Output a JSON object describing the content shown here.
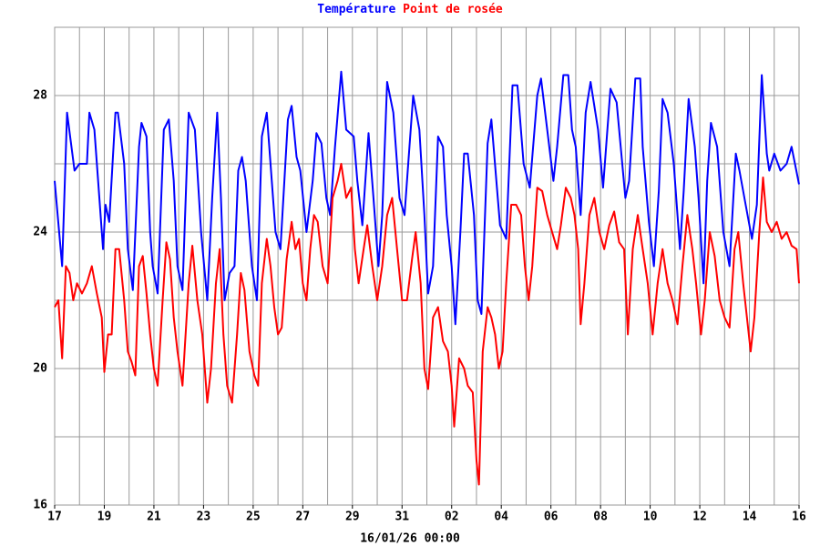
{
  "chart_data": {
    "type": "line",
    "xlabel": "16/01/26 00:00",
    "xlim": [
      0,
      30
    ],
    "ylim": [
      16,
      30
    ],
    "yticks": [
      16,
      20,
      24,
      28
    ],
    "minor_yticks": [
      18,
      22,
      26,
      30
    ],
    "xticks": [
      {
        "value": 0,
        "label": "17"
      },
      {
        "value": 2,
        "label": "19"
      },
      {
        "value": 4,
        "label": "21"
      },
      {
        "value": 6,
        "label": "23"
      },
      {
        "value": 8,
        "label": "25"
      },
      {
        "value": 10,
        "label": "27"
      },
      {
        "value": 12,
        "label": "29"
      },
      {
        "value": 14,
        "label": "31"
      },
      {
        "value": 16,
        "label": "02"
      },
      {
        "value": 18,
        "label": "04"
      },
      {
        "value": 20,
        "label": "06"
      },
      {
        "value": 22,
        "label": "08"
      },
      {
        "value": 24,
        "label": "10"
      },
      {
        "value": 26,
        "label": "12"
      },
      {
        "value": 28,
        "label": "14"
      },
      {
        "value": 30,
        "label": "16"
      }
    ],
    "minor_xticks": [
      1,
      3,
      5,
      7,
      9,
      11,
      13,
      15,
      17,
      19,
      21,
      23,
      25,
      27,
      29
    ],
    "grid": true,
    "series": [
      {
        "name": "Température",
        "color": "#0000ff",
        "x": [
          0,
          0.3,
          0.5,
          0.8,
          1.0,
          1.3,
          1.4,
          1.6,
          1.75,
          1.95,
          2.05,
          2.2,
          2.45,
          2.55,
          2.8,
          2.95,
          3.15,
          3.4,
          3.5,
          3.7,
          3.85,
          3.95,
          4.15,
          4.4,
          4.6,
          4.8,
          4.95,
          5.15,
          5.4,
          5.65,
          5.9,
          6.15,
          6.35,
          6.55,
          6.7,
          6.85,
          7.05,
          7.25,
          7.4,
          7.55,
          7.7,
          7.95,
          8.15,
          8.35,
          8.55,
          8.75,
          8.9,
          9.1,
          9.4,
          9.55,
          9.75,
          9.9,
          10.15,
          10.4,
          10.55,
          10.75,
          10.95,
          11.1,
          11.3,
          11.55,
          11.75,
          12.05,
          12.2,
          12.4,
          12.65,
          12.85,
          13.05,
          13.2,
          13.4,
          13.65,
          13.9,
          14.1,
          14.3,
          14.45,
          14.7,
          14.9,
          15.05,
          15.25,
          15.45,
          15.65,
          15.8,
          16.0,
          16.15,
          16.35,
          16.5,
          16.65,
          16.9,
          17.05,
          17.2,
          17.45,
          17.6,
          17.8,
          17.95,
          18.2,
          18.45,
          18.65,
          18.9,
          19.15,
          19.45,
          19.6,
          19.85,
          20.1,
          20.25,
          20.5,
          20.7,
          20.85,
          21.0,
          21.2,
          21.4,
          21.6,
          21.9,
          22.1,
          22.4,
          22.65,
          23.0,
          23.15,
          23.4,
          23.6,
          23.7,
          23.95,
          24.15,
          24.35,
          24.5,
          24.7,
          24.95,
          25.2,
          25.35,
          25.55,
          25.8,
          25.95,
          26.15,
          26.3,
          26.45,
          26.7,
          26.95,
          27.2,
          27.45,
          27.6,
          27.85,
          28.1,
          28.3,
          28.5,
          28.7,
          28.8,
          29.0,
          29.25,
          29.5,
          29.7,
          30.0
        ],
        "values": [
          25.5,
          23,
          27.5,
          25.8,
          26,
          26,
          27.5,
          27,
          25.5,
          23.5,
          24.8,
          24.3,
          27.5,
          27.5,
          26,
          23.5,
          22.3,
          26.5,
          27.2,
          26.8,
          24,
          23,
          22.2,
          27,
          27.3,
          25.5,
          23,
          22.3,
          27.5,
          27,
          24,
          22,
          25,
          27.5,
          25,
          22,
          22.8,
          23,
          25.8,
          26.2,
          25.5,
          23,
          22,
          26.8,
          27.5,
          25.5,
          24,
          23.5,
          27.3,
          27.7,
          26.2,
          25.8,
          24,
          25.5,
          26.9,
          26.6,
          25,
          24.5,
          26.5,
          28.7,
          27,
          26.8,
          25.5,
          24.2,
          26.9,
          25,
          23,
          24.5,
          28.4,
          27.5,
          25,
          24.5,
          26.5,
          28,
          27,
          24.5,
          22.2,
          23,
          26.8,
          26.5,
          24.5,
          23,
          21.3,
          24,
          26.3,
          26.3,
          24.5,
          22,
          21.6,
          26.6,
          27.3,
          25.5,
          24.2,
          23.8,
          28.3,
          28.3,
          26,
          25.3,
          28,
          28.5,
          27,
          25.5,
          26.5,
          28.6,
          28.6,
          27,
          26.5,
          24.5,
          27.5,
          28.4,
          27,
          25.3,
          28.2,
          27.8,
          25,
          25.5,
          28.5,
          28.5,
          26.5,
          24.3,
          23,
          25.2,
          27.9,
          27.5,
          26,
          23.5,
          25.2,
          27.9,
          26.5,
          25,
          22.5,
          25.5,
          27.2,
          26.5,
          24,
          23,
          26.3,
          25.8,
          24.8,
          23.8,
          24.8,
          28.6,
          26.3,
          25.8,
          26.3,
          25.8,
          26,
          26.5,
          25.4
        ]
      },
      {
        "name": "Point de rosée",
        "color": "#ff0000",
        "x": [
          0,
          0.15,
          0.3,
          0.45,
          0.6,
          0.75,
          0.9,
          1.1,
          1.3,
          1.5,
          1.7,
          1.9,
          2.0,
          2.15,
          2.3,
          2.45,
          2.6,
          2.8,
          2.95,
          3.1,
          3.25,
          3.4,
          3.55,
          3.7,
          3.85,
          4.0,
          4.15,
          4.35,
          4.5,
          4.65,
          4.8,
          4.95,
          5.15,
          5.4,
          5.55,
          5.75,
          5.95,
          6.15,
          6.3,
          6.5,
          6.65,
          6.8,
          6.95,
          7.15,
          7.35,
          7.5,
          7.65,
          7.85,
          8.05,
          8.2,
          8.35,
          8.55,
          8.7,
          8.85,
          9.0,
          9.15,
          9.35,
          9.55,
          9.7,
          9.85,
          10.0,
          10.15,
          10.3,
          10.45,
          10.6,
          10.8,
          11.0,
          11.2,
          11.4,
          11.55,
          11.75,
          11.95,
          12.1,
          12.25,
          12.45,
          12.6,
          12.8,
          13.0,
          13.2,
          13.4,
          13.6,
          13.8,
          14.0,
          14.2,
          14.4,
          14.55,
          14.75,
          14.9,
          15.05,
          15.25,
          15.45,
          15.65,
          15.85,
          16.0,
          16.1,
          16.3,
          16.5,
          16.65,
          16.85,
          17.0,
          17.1,
          17.25,
          17.45,
          17.6,
          17.75,
          17.9,
          18.05,
          18.2,
          18.4,
          18.6,
          18.8,
          18.95,
          19.1,
          19.25,
          19.45,
          19.65,
          19.85,
          20.05,
          20.25,
          20.4,
          20.6,
          20.8,
          20.95,
          21.1,
          21.2,
          21.35,
          21.55,
          21.75,
          21.95,
          22.15,
          22.35,
          22.55,
          22.75,
          22.95,
          23.1,
          23.3,
          23.5,
          23.7,
          23.9,
          24.1,
          24.3,
          24.5,
          24.7,
          24.9,
          25.1,
          25.3,
          25.5,
          25.7,
          25.85,
          26.05,
          26.2,
          26.4,
          26.6,
          26.8,
          27.0,
          27.2,
          27.4,
          27.55,
          27.75,
          27.9,
          28.05,
          28.2,
          28.4,
          28.55,
          28.7,
          28.9,
          29.1,
          29.3,
          29.5,
          29.7,
          29.9,
          30.0
        ],
        "values": [
          21.8,
          22,
          20.3,
          23,
          22.8,
          22,
          22.5,
          22.2,
          22.5,
          23,
          22.2,
          21.5,
          19.9,
          21,
          21,
          23.5,
          23.5,
          22,
          20.5,
          20.2,
          19.8,
          23,
          23.3,
          22.2,
          21,
          20,
          19.5,
          22,
          23.7,
          23.2,
          21.5,
          20.5,
          19.5,
          22.5,
          23.6,
          22,
          21,
          19,
          20,
          22.5,
          23.5,
          21,
          19.5,
          19,
          21,
          22.8,
          22.3,
          20.5,
          19.8,
          19.5,
          22.5,
          23.8,
          23,
          21.8,
          21,
          21.2,
          23.2,
          24.3,
          23.5,
          23.8,
          22.5,
          22,
          23.5,
          24.5,
          24.3,
          23,
          22.5,
          25,
          25.5,
          26,
          25,
          25.3,
          23.5,
          22.5,
          23.5,
          24.2,
          23,
          22,
          23,
          24.5,
          25,
          23.5,
          22,
          22,
          23.2,
          24,
          22.5,
          20,
          19.4,
          21.5,
          21.8,
          20.8,
          20.5,
          19.5,
          18.3,
          20.3,
          20,
          19.5,
          19.3,
          17.3,
          16.6,
          20.5,
          21.8,
          21.5,
          21,
          20,
          20.5,
          22.5,
          24.8,
          24.8,
          24.5,
          23,
          22,
          23,
          25.3,
          25.2,
          24.5,
          24,
          23.5,
          24.2,
          25.3,
          25,
          24.5,
          23.5,
          21.3,
          22.5,
          24.5,
          25,
          24,
          23.5,
          24.2,
          24.6,
          23.7,
          23.5,
          21,
          23.5,
          24.5,
          23.5,
          22.5,
          21,
          22.5,
          23.5,
          22.5,
          22,
          21.3,
          23,
          24.5,
          23.5,
          22.5,
          21,
          22,
          24,
          23.3,
          22,
          21.5,
          21.2,
          23.5,
          24,
          22.5,
          21.5,
          20.5,
          21.5,
          24,
          25.6,
          24.3,
          24,
          24.3,
          23.8,
          24,
          23.6,
          23.5,
          22.5
        ]
      }
    ]
  }
}
